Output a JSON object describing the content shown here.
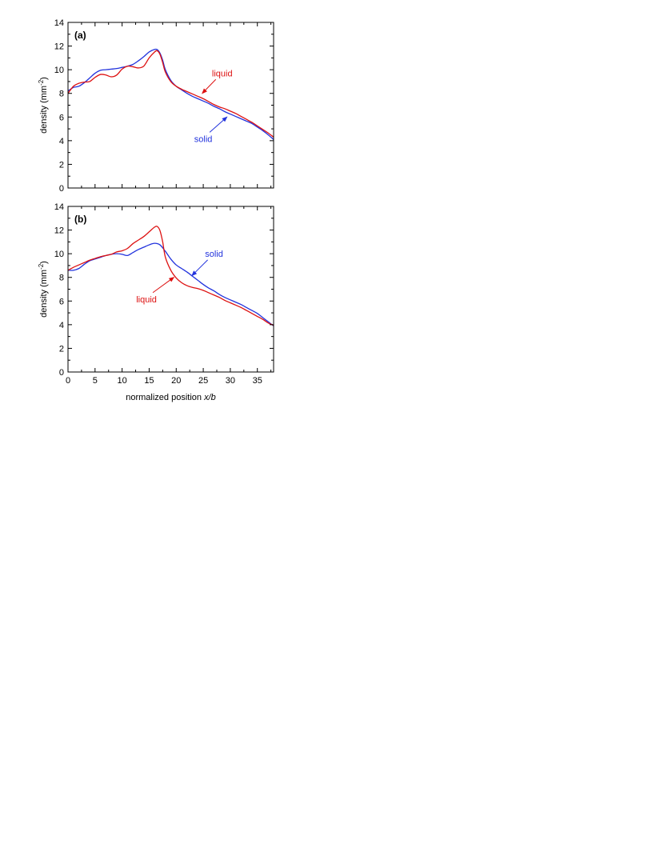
{
  "chart_data": [
    {
      "type": "line",
      "panel_label": "(a)",
      "ylabel_text": "density (mm",
      "ylabel_sup": "-2",
      "ylabel_close": ")",
      "xlabel": "",
      "xlim": [
        0,
        38
      ],
      "ylim": [
        0,
        14
      ],
      "x_ticks": [
        0,
        5,
        10,
        15,
        20,
        25,
        30,
        35
      ],
      "y_ticks": [
        0,
        2,
        4,
        6,
        8,
        10,
        12,
        14
      ],
      "x_tick_labels_visible": false,
      "grid": false,
      "legend": "none",
      "series": [
        {
          "name": "solid",
          "color": "#2233dd",
          "points": [
            [
              0,
              8.2
            ],
            [
              1,
              8.5
            ],
            [
              2,
              8.6
            ],
            [
              3,
              8.9
            ],
            [
              4,
              9.3
            ],
            [
              5,
              9.7
            ],
            [
              6,
              9.95
            ],
            [
              7,
              10.0
            ],
            [
              8,
              10.05
            ],
            [
              9,
              10.1
            ],
            [
              10,
              10.2
            ],
            [
              11,
              10.3
            ],
            [
              12,
              10.45
            ],
            [
              13,
              10.75
            ],
            [
              14,
              11.1
            ],
            [
              15,
              11.5
            ],
            [
              16,
              11.72
            ],
            [
              16.5,
              11.7
            ],
            [
              17,
              11.4
            ],
            [
              17.5,
              10.8
            ],
            [
              18,
              10.0
            ],
            [
              19,
              9.1
            ],
            [
              20,
              8.6
            ],
            [
              21,
              8.3
            ],
            [
              22,
              8.0
            ],
            [
              23,
              7.75
            ],
            [
              24,
              7.55
            ],
            [
              25,
              7.35
            ],
            [
              26,
              7.15
            ],
            [
              27,
              6.9
            ],
            [
              28,
              6.7
            ],
            [
              29,
              6.45
            ],
            [
              30,
              6.25
            ],
            [
              31,
              6.05
            ],
            [
              32,
              5.85
            ],
            [
              33,
              5.65
            ],
            [
              34,
              5.45
            ],
            [
              35,
              5.15
            ],
            [
              36,
              4.85
            ],
            [
              37,
              4.5
            ],
            [
              38,
              4.1
            ]
          ]
        },
        {
          "name": "liquid",
          "color": "#dd1111",
          "points": [
            [
              0,
              8.0
            ],
            [
              1,
              8.6
            ],
            [
              2,
              8.85
            ],
            [
              3,
              8.95
            ],
            [
              4,
              9.0
            ],
            [
              5,
              9.35
            ],
            [
              6,
              9.6
            ],
            [
              7,
              9.55
            ],
            [
              8,
              9.4
            ],
            [
              9,
              9.55
            ],
            [
              10,
              10.05
            ],
            [
              11,
              10.3
            ],
            [
              12,
              10.25
            ],
            [
              13,
              10.15
            ],
            [
              14,
              10.3
            ],
            [
              15,
              11.0
            ],
            [
              16,
              11.5
            ],
            [
              16.5,
              11.6
            ],
            [
              17,
              11.3
            ],
            [
              17.5,
              10.6
            ],
            [
              18,
              9.8
            ],
            [
              19,
              9.0
            ],
            [
              20,
              8.6
            ],
            [
              21,
              8.35
            ],
            [
              22,
              8.15
            ],
            [
              23,
              7.95
            ],
            [
              24,
              7.75
            ],
            [
              25,
              7.55
            ],
            [
              26,
              7.3
            ],
            [
              27,
              7.05
            ],
            [
              28,
              6.85
            ],
            [
              29,
              6.7
            ],
            [
              30,
              6.5
            ],
            [
              31,
              6.3
            ],
            [
              32,
              6.05
            ],
            [
              33,
              5.8
            ],
            [
              34,
              5.55
            ],
            [
              35,
              5.25
            ],
            [
              36,
              4.95
            ],
            [
              37,
              4.65
            ],
            [
              38,
              4.3
            ]
          ]
        }
      ],
      "annotations": [
        {
          "text": "liquid",
          "color": "#dd1111",
          "label_x": 28.5,
          "label_y": 9.45,
          "arrow_to": [
            24.7,
            7.95
          ]
        },
        {
          "text": "solid",
          "color": "#2233dd",
          "label_x": 25.0,
          "label_y": 3.9,
          "arrow_to": [
            29.5,
            6.05
          ]
        }
      ]
    },
    {
      "type": "line",
      "panel_label": "(b)",
      "ylabel_text": "density (mm",
      "ylabel_sup": "-2",
      "ylabel_close": ")",
      "xlabel_text": "normalized position ",
      "xlabel_italic": "x/b",
      "xlim": [
        0,
        38
      ],
      "ylim": [
        0,
        14
      ],
      "x_ticks": [
        0,
        5,
        10,
        15,
        20,
        25,
        30,
        35
      ],
      "x_tick_labels": [
        "0",
        "5",
        "10",
        "15",
        "20",
        "25",
        "30",
        "35"
      ],
      "y_ticks": [
        0,
        2,
        4,
        6,
        8,
        10,
        12,
        14
      ],
      "grid": false,
      "legend": "none",
      "series": [
        {
          "name": "solid",
          "color": "#2233dd",
          "points": [
            [
              0,
              8.6
            ],
            [
              1,
              8.6
            ],
            [
              2,
              8.75
            ],
            [
              3,
              9.1
            ],
            [
              4,
              9.4
            ],
            [
              5,
              9.55
            ],
            [
              6,
              9.7
            ],
            [
              7,
              9.85
            ],
            [
              8,
              9.95
            ],
            [
              9,
              10.0
            ],
            [
              10,
              9.95
            ],
            [
              11,
              9.85
            ],
            [
              12,
              10.1
            ],
            [
              13,
              10.35
            ],
            [
              14,
              10.55
            ],
            [
              15,
              10.75
            ],
            [
              16,
              10.88
            ],
            [
              17,
              10.75
            ],
            [
              18,
              10.2
            ],
            [
              19,
              9.55
            ],
            [
              20,
              9.05
            ],
            [
              21,
              8.75
            ],
            [
              22,
              8.45
            ],
            [
              23,
              8.1
            ],
            [
              24,
              7.75
            ],
            [
              25,
              7.4
            ],
            [
              26,
              7.1
            ],
            [
              27,
              6.85
            ],
            [
              28,
              6.55
            ],
            [
              29,
              6.3
            ],
            [
              30,
              6.1
            ],
            [
              31,
              5.9
            ],
            [
              32,
              5.7
            ],
            [
              33,
              5.45
            ],
            [
              34,
              5.2
            ],
            [
              35,
              4.95
            ],
            [
              36,
              4.6
            ],
            [
              37,
              4.25
            ],
            [
              38,
              3.9
            ]
          ]
        },
        {
          "name": "liquid",
          "color": "#dd1111",
          "points": [
            [
              0,
              8.6
            ],
            [
              1,
              8.85
            ],
            [
              2,
              9.05
            ],
            [
              3,
              9.25
            ],
            [
              4,
              9.45
            ],
            [
              5,
              9.6
            ],
            [
              6,
              9.75
            ],
            [
              7,
              9.85
            ],
            [
              8,
              9.95
            ],
            [
              9,
              10.15
            ],
            [
              10,
              10.25
            ],
            [
              11,
              10.45
            ],
            [
              12,
              10.85
            ],
            [
              13,
              11.15
            ],
            [
              14,
              11.45
            ],
            [
              15,
              11.85
            ],
            [
              16,
              12.25
            ],
            [
              16.5,
              12.3
            ],
            [
              17,
              11.95
            ],
            [
              17.5,
              11.0
            ],
            [
              18,
              9.7
            ],
            [
              19,
              8.6
            ],
            [
              20,
              7.95
            ],
            [
              21,
              7.55
            ],
            [
              22,
              7.3
            ],
            [
              23,
              7.15
            ],
            [
              24,
              7.05
            ],
            [
              25,
              6.9
            ],
            [
              26,
              6.7
            ],
            [
              27,
              6.5
            ],
            [
              28,
              6.3
            ],
            [
              29,
              6.05
            ],
            [
              30,
              5.85
            ],
            [
              31,
              5.65
            ],
            [
              32,
              5.45
            ],
            [
              33,
              5.2
            ],
            [
              34,
              4.95
            ],
            [
              35,
              4.7
            ],
            [
              36,
              4.45
            ],
            [
              37,
              4.15
            ],
            [
              38,
              3.95
            ]
          ]
        }
      ],
      "annotations": [
        {
          "text": "solid",
          "color": "#2233dd",
          "label_x": 27.0,
          "label_y": 9.75,
          "arrow_to": [
            22.8,
            8.1
          ]
        },
        {
          "text": "liquid",
          "color": "#dd1111",
          "label_x": 14.5,
          "label_y": 5.9,
          "arrow_to": [
            19.7,
            8.05
          ]
        }
      ]
    }
  ]
}
